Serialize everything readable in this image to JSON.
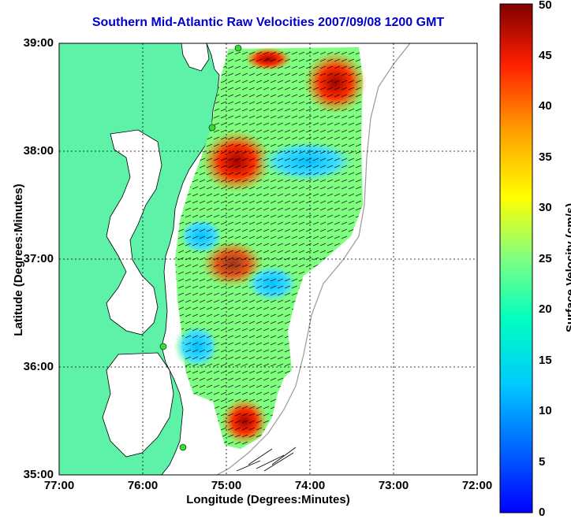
{
  "title": "Southern Mid-Atlantic Raw Velocities 2007/09/08 1200 GMT",
  "xlabel": "Longitude (Degrees:Minutes)",
  "ylabel": "Latitude (Degrees:Minutes)",
  "colorbar": {
    "label": "Surface Velocity (cm/s)",
    "ticks": [
      "0",
      "5",
      "10",
      "15",
      "20",
      "25",
      "30",
      "35",
      "40",
      "45",
      "50"
    ],
    "range": [
      0,
      50
    ],
    "colormap": "jet"
  },
  "x_ticks": [
    "77:00",
    "76:00",
    "75:00",
    "74:00",
    "73:00",
    "72:00"
  ],
  "y_ticks": [
    "39:00",
    "38:00",
    "37:00",
    "36:00",
    "35:00"
  ],
  "map": {
    "extent_lon": [
      -77,
      -72
    ],
    "extent_lat": [
      35,
      39
    ],
    "land_color": "#5ef2a9",
    "water_color": "#ffffff",
    "grid": true,
    "stations": [
      "station-1",
      "station-2",
      "station-3",
      "station-4"
    ]
  }
}
